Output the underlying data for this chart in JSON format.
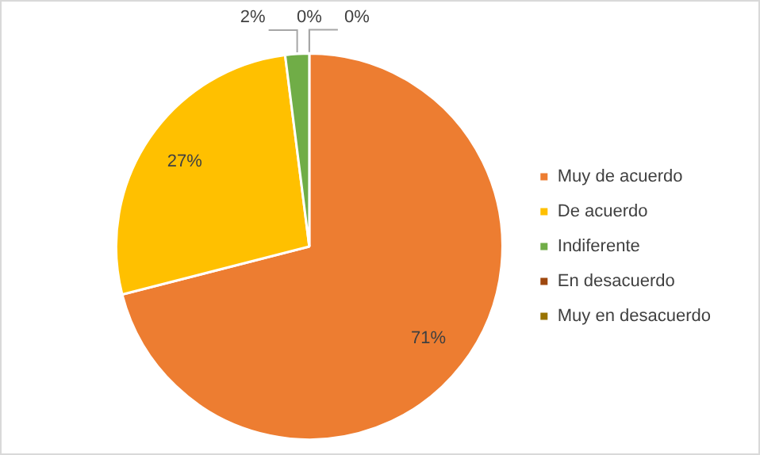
{
  "chart_data": {
    "type": "pie",
    "categories": [
      "Muy de acuerdo",
      "De acuerdo",
      "Indiferente",
      "En desacuerdo",
      "Muy en desacuerdo"
    ],
    "values": [
      71,
      27,
      2,
      0,
      0
    ],
    "value_labels": [
      "71%",
      "27%",
      "2%",
      "0%",
      "0%"
    ],
    "colors": [
      "#ed7d31",
      "#ffc000",
      "#70ad47",
      "#9e480e",
      "#997300"
    ],
    "legend": "right"
  }
}
